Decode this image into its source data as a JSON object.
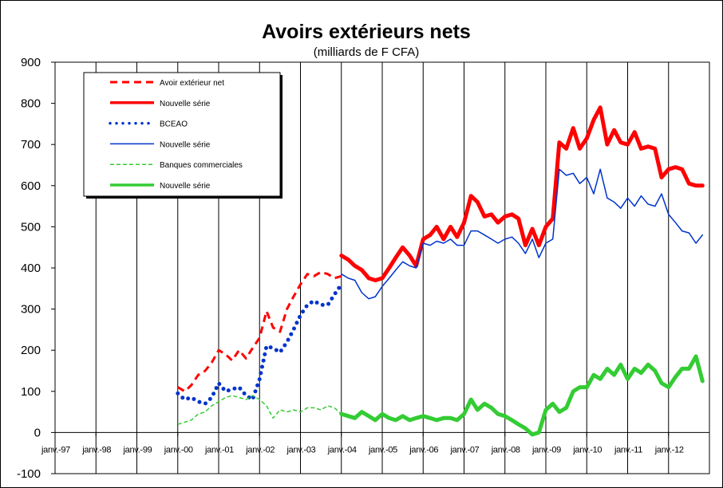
{
  "chart_data": {
    "type": "line",
    "title": "Avoirs extérieurs nets",
    "subtitle": "(milliards de F CFA)",
    "xlabel": "",
    "ylabel": "",
    "ylim": [
      -100,
      900
    ],
    "yticks": [
      -100,
      0,
      100,
      200,
      300,
      400,
      500,
      600,
      700,
      800,
      900
    ],
    "xlim": [
      0,
      16
    ],
    "x_tick_labels": [
      "janv.-97",
      "janv.-98",
      "janv.-99",
      "janv.-00",
      "janv.-01",
      "janv.-02",
      "janv.-03",
      "janv.-04",
      "janv.-05",
      "janv.-06",
      "janv.-07",
      "janv.-08",
      "janv.-09",
      "janv.-10",
      "janv.-11",
      "janv.-12"
    ],
    "grid": "vertical",
    "legend_position": "top-left",
    "series": [
      {
        "name": "Avoir extérieur net",
        "color": "#ff0000",
        "style": "dashed",
        "x": [
          3.0,
          3.17,
          3.33,
          3.5,
          3.67,
          3.83,
          4.0,
          4.17,
          4.33,
          4.5,
          4.67,
          4.83,
          5.0,
          5.17,
          5.33,
          5.5,
          5.67,
          5.83,
          6.0,
          6.17,
          6.33,
          6.5,
          6.67,
          6.83,
          7.0
        ],
        "y": [
          110,
          100,
          115,
          140,
          150,
          170,
          200,
          190,
          175,
          200,
          180,
          205,
          230,
          295,
          255,
          245,
          300,
          330,
          360,
          385,
          380,
          390,
          385,
          375,
          380
        ]
      },
      {
        "name": "Nouvelle série",
        "color": "#ff0000",
        "style": "solid-thick",
        "x": [
          7.0,
          7.17,
          7.33,
          7.5,
          7.67,
          7.83,
          8.0,
          8.17,
          8.33,
          8.5,
          8.67,
          8.83,
          9.0,
          9.17,
          9.33,
          9.5,
          9.67,
          9.83,
          10.0,
          10.17,
          10.33,
          10.5,
          10.67,
          10.83,
          11.0,
          11.17,
          11.33,
          11.5,
          11.67,
          11.83,
          12.0,
          12.17,
          12.33,
          12.5,
          12.67,
          12.83,
          13.0,
          13.17,
          13.33,
          13.5,
          13.67,
          13.83,
          14.0,
          14.17,
          14.33,
          14.5,
          14.67,
          14.83,
          15.0,
          15.17,
          15.33,
          15.5,
          15.67,
          15.83
        ],
        "y": [
          430,
          420,
          405,
          395,
          375,
          370,
          375,
          400,
          425,
          450,
          430,
          405,
          470,
          480,
          500,
          470,
          500,
          475,
          510,
          575,
          560,
          525,
          530,
          510,
          525,
          530,
          520,
          455,
          495,
          455,
          500,
          520,
          705,
          690,
          740,
          690,
          715,
          760,
          790,
          700,
          735,
          705,
          700,
          730,
          690,
          695,
          690,
          620,
          640,
          645,
          640,
          605,
          600,
          600
        ]
      },
      {
        "name": "BCEAO",
        "color": "#0033cc",
        "style": "dotted",
        "x": [
          3.0,
          3.17,
          3.33,
          3.5,
          3.67,
          3.83,
          4.0,
          4.17,
          4.33,
          4.5,
          4.67,
          4.83,
          5.0,
          5.17,
          5.33,
          5.5,
          5.67,
          5.83,
          6.0,
          6.17,
          6.33,
          6.5,
          6.67,
          6.83,
          7.0
        ],
        "y": [
          95,
          80,
          85,
          75,
          70,
          85,
          120,
          100,
          105,
          110,
          90,
          80,
          130,
          210,
          205,
          195,
          220,
          250,
          285,
          310,
          320,
          310,
          310,
          335,
          360
        ]
      },
      {
        "name": "Nouvelle série",
        "color": "#0033cc",
        "style": "solid-thin",
        "x": [
          7.0,
          7.17,
          7.33,
          7.5,
          7.67,
          7.83,
          8.0,
          8.17,
          8.33,
          8.5,
          8.67,
          8.83,
          9.0,
          9.17,
          9.33,
          9.5,
          9.67,
          9.83,
          10.0,
          10.17,
          10.33,
          10.5,
          10.67,
          10.83,
          11.0,
          11.17,
          11.33,
          11.5,
          11.67,
          11.83,
          12.0,
          12.17,
          12.33,
          12.5,
          12.67,
          12.83,
          13.0,
          13.17,
          13.33,
          13.5,
          13.67,
          13.83,
          14.0,
          14.17,
          14.33,
          14.5,
          14.67,
          14.83,
          15.0,
          15.17,
          15.33,
          15.5,
          15.67,
          15.83
        ],
        "y": [
          385,
          375,
          370,
          340,
          325,
          330,
          355,
          375,
          395,
          415,
          405,
          400,
          460,
          455,
          465,
          460,
          470,
          455,
          455,
          490,
          490,
          480,
          470,
          460,
          470,
          475,
          460,
          435,
          470,
          425,
          460,
          470,
          640,
          625,
          630,
          605,
          620,
          580,
          640,
          570,
          560,
          545,
          570,
          550,
          575,
          555,
          550,
          580,
          530,
          510,
          490,
          485,
          460,
          480
        ]
      },
      {
        "name": "Banques commerciales",
        "color": "#33cc33",
        "style": "dashed-thin",
        "x": [
          3.0,
          3.17,
          3.33,
          3.5,
          3.67,
          3.83,
          4.0,
          4.17,
          4.33,
          4.5,
          4.67,
          4.83,
          5.0,
          5.17,
          5.33,
          5.5,
          5.67,
          5.83,
          6.0,
          6.17,
          6.33,
          6.5,
          6.67,
          6.83,
          7.0
        ],
        "y": [
          20,
          25,
          30,
          45,
          50,
          65,
          75,
          85,
          90,
          85,
          80,
          90,
          80,
          65,
          35,
          55,
          50,
          55,
          50,
          60,
          60,
          55,
          65,
          60,
          45
        ]
      },
      {
        "name": "Nouvelle série",
        "color": "#33cc33",
        "style": "solid-thick",
        "x": [
          7.0,
          7.17,
          7.33,
          7.5,
          7.67,
          7.83,
          8.0,
          8.17,
          8.33,
          8.5,
          8.67,
          8.83,
          9.0,
          9.17,
          9.33,
          9.5,
          9.67,
          9.83,
          10.0,
          10.17,
          10.33,
          10.5,
          10.67,
          10.83,
          11.0,
          11.17,
          11.33,
          11.5,
          11.67,
          11.83,
          12.0,
          12.17,
          12.33,
          12.5,
          12.67,
          12.83,
          13.0,
          13.17,
          13.33,
          13.5,
          13.67,
          13.83,
          14.0,
          14.17,
          14.33,
          14.5,
          14.67,
          14.83,
          15.0,
          15.17,
          15.33,
          15.5,
          15.67,
          15.83
        ],
        "y": [
          45,
          40,
          35,
          50,
          40,
          30,
          45,
          35,
          30,
          40,
          30,
          35,
          40,
          35,
          30,
          35,
          35,
          30,
          45,
          80,
          55,
          70,
          60,
          45,
          40,
          30,
          20,
          10,
          -5,
          0,
          55,
          70,
          50,
          60,
          100,
          110,
          110,
          140,
          130,
          155,
          140,
          165,
          130,
          155,
          145,
          165,
          150,
          120,
          110,
          135,
          155,
          155,
          185,
          125
        ]
      }
    ]
  }
}
